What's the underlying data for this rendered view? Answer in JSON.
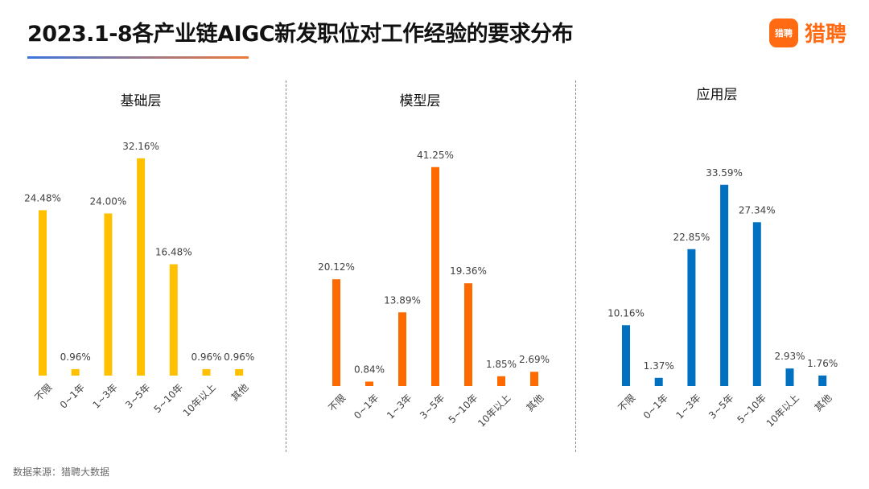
{
  "title": "2023.1-8各产业链AIGC新发职位对工作经验的要求分布",
  "logo": {
    "badge_text": "猎聘",
    "text": "猎聘"
  },
  "source": "数据来源：猎聘大数据",
  "chart_data": [
    {
      "type": "bar",
      "title": "基础层",
      "categories": [
        "不限",
        "0~1年",
        "1~3年",
        "3~5年",
        "5~10年",
        "10年以上",
        "其他"
      ],
      "values": [
        24.48,
        0.96,
        24.0,
        32.16,
        16.48,
        0.96,
        0.96
      ],
      "value_labels": [
        "24.48%",
        "0.96%",
        "24.00%",
        "32.16%",
        "16.48%",
        "0.96%",
        "0.96%"
      ],
      "color": "#FFC000",
      "unit": "%"
    },
    {
      "type": "bar",
      "title": "模型层",
      "categories": [
        "不限",
        "0~1年",
        "1~3年",
        "3~5年",
        "5~10年",
        "10年以上",
        "其他"
      ],
      "values": [
        20.12,
        0.84,
        13.89,
        41.25,
        19.36,
        1.85,
        2.69
      ],
      "value_labels": [
        "20.12%",
        "0.84%",
        "13.89%",
        "41.25%",
        "19.36%",
        "1.85%",
        "2.69%"
      ],
      "color": "#FF6A00",
      "unit": "%"
    },
    {
      "type": "bar",
      "title": "应用层",
      "categories": [
        "不限",
        "0~1年",
        "1~3年",
        "3~5年",
        "5~10年",
        "10年以上",
        "其他"
      ],
      "values": [
        10.16,
        1.37,
        22.85,
        33.59,
        27.34,
        2.93,
        1.76
      ],
      "value_labels": [
        "10.16%",
        "1.37%",
        "22.85%",
        "33.59%",
        "27.34%",
        "2.93%",
        "1.76%"
      ],
      "color": "#0070C0",
      "unit": "%"
    }
  ]
}
